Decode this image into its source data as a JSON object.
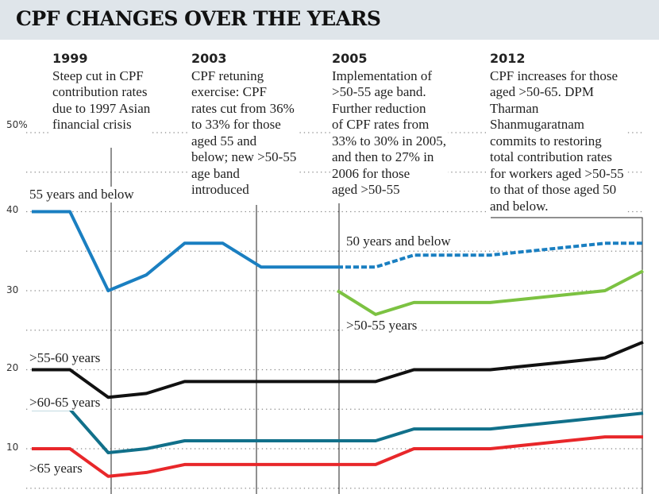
{
  "chart_data": {
    "type": "line",
    "title": "CPF CHANGES OVER THE YEARS",
    "xlabel": "",
    "ylabel": "",
    "ylim": [
      5,
      50
    ],
    "yticks": [
      {
        "value": 50,
        "label": "50%"
      },
      {
        "value": 40,
        "label": "40"
      },
      {
        "value": 30,
        "label": "30"
      },
      {
        "value": 20,
        "label": "20"
      },
      {
        "value": 10,
        "label": "10"
      }
    ],
    "grid": "horizontal dotted, every 5",
    "xlim": [
      1997,
      2013
    ],
    "series": [
      {
        "name": "55 years and below",
        "color": "#1a7fc1",
        "style": "solid",
        "x": [
          1997,
          1998,
          1999,
          2000,
          2001,
          2002,
          2003,
          2004,
          2005
        ],
        "values": [
          40,
          40,
          30,
          32,
          36,
          36,
          33,
          33,
          33
        ]
      },
      {
        "name": "50 years and below",
        "color": "#1a7fc1",
        "style": "dashed",
        "x": [
          2005,
          2006,
          2007,
          2008,
          2009,
          2010,
          2011,
          2012,
          2013
        ],
        "values": [
          33,
          33,
          34.5,
          34.5,
          34.5,
          35,
          35.5,
          36,
          36
        ]
      },
      {
        "name": ">50-55 years",
        "color": "#7cc242",
        "style": "solid",
        "x": [
          2005,
          2006,
          2007,
          2008,
          2009,
          2010,
          2011,
          2012,
          2013
        ],
        "values": [
          30,
          27,
          28.5,
          28.5,
          28.5,
          29,
          29.5,
          30,
          32.5
        ]
      },
      {
        "name": ">55-60 years",
        "color": "#111111",
        "style": "solid",
        "x": [
          1997,
          1998,
          1999,
          2000,
          2001,
          2002,
          2003,
          2004,
          2005,
          2006,
          2007,
          2008,
          2009,
          2010,
          2011,
          2012,
          2013
        ],
        "values": [
          20,
          20,
          16.5,
          17,
          18.5,
          18.5,
          18.5,
          18.5,
          18.5,
          18.5,
          20,
          20,
          20,
          20.5,
          21,
          21.5,
          23.5
        ]
      },
      {
        "name": ">60-65 years",
        "color": "#11708a",
        "style": "solid",
        "x": [
          1997,
          1998,
          1999,
          2000,
          2001,
          2002,
          2003,
          2004,
          2005,
          2006,
          2007,
          2008,
          2009,
          2010,
          2011,
          2012,
          2013
        ],
        "values": [
          15,
          15,
          9.5,
          10,
          11,
          11,
          11,
          11,
          11,
          11,
          12.5,
          12.5,
          12.5,
          13,
          13.5,
          14,
          14.5
        ]
      },
      {
        "name": ">65 years",
        "color": "#e8272a",
        "style": "solid",
        "x": [
          1997,
          1998,
          1999,
          2000,
          2001,
          2002,
          2003,
          2004,
          2005,
          2006,
          2007,
          2008,
          2009,
          2010,
          2011,
          2012,
          2013
        ],
        "values": [
          10,
          10,
          6.5,
          7,
          8,
          8,
          8,
          8,
          8,
          8,
          10,
          10,
          10,
          10.5,
          11,
          11.5,
          11.5
        ]
      }
    ],
    "annotations": [
      {
        "year": "1999",
        "text": [
          "Steep cut in CPF",
          "contribution rates",
          "due to 1997 Asian",
          "financial crisis"
        ]
      },
      {
        "year": "2003",
        "text": [
          "CPF retuning",
          "exercise: CPF",
          "rates cut from 36%",
          "to 33% for those",
          "aged 55 and",
          "below; new >50-55",
          "age band",
          "introduced"
        ]
      },
      {
        "year": "2005",
        "text": [
          "Implementation of",
          ">50-55 age band.",
          "Further reduction",
          "of CPF rates from",
          "33% to 30% in 2005,",
          "and then to 27% in",
          "2006 for those",
          "aged >50-55"
        ]
      },
      {
        "year": "2012",
        "text": [
          "CPF increases for those",
          "aged >50-65. DPM",
          "Tharman",
          "Shanmugaratnam",
          "commits to restoring",
          "total contribution rates",
          "for workers aged >50-55",
          "to that of those aged 50",
          "and below."
        ]
      }
    ]
  }
}
